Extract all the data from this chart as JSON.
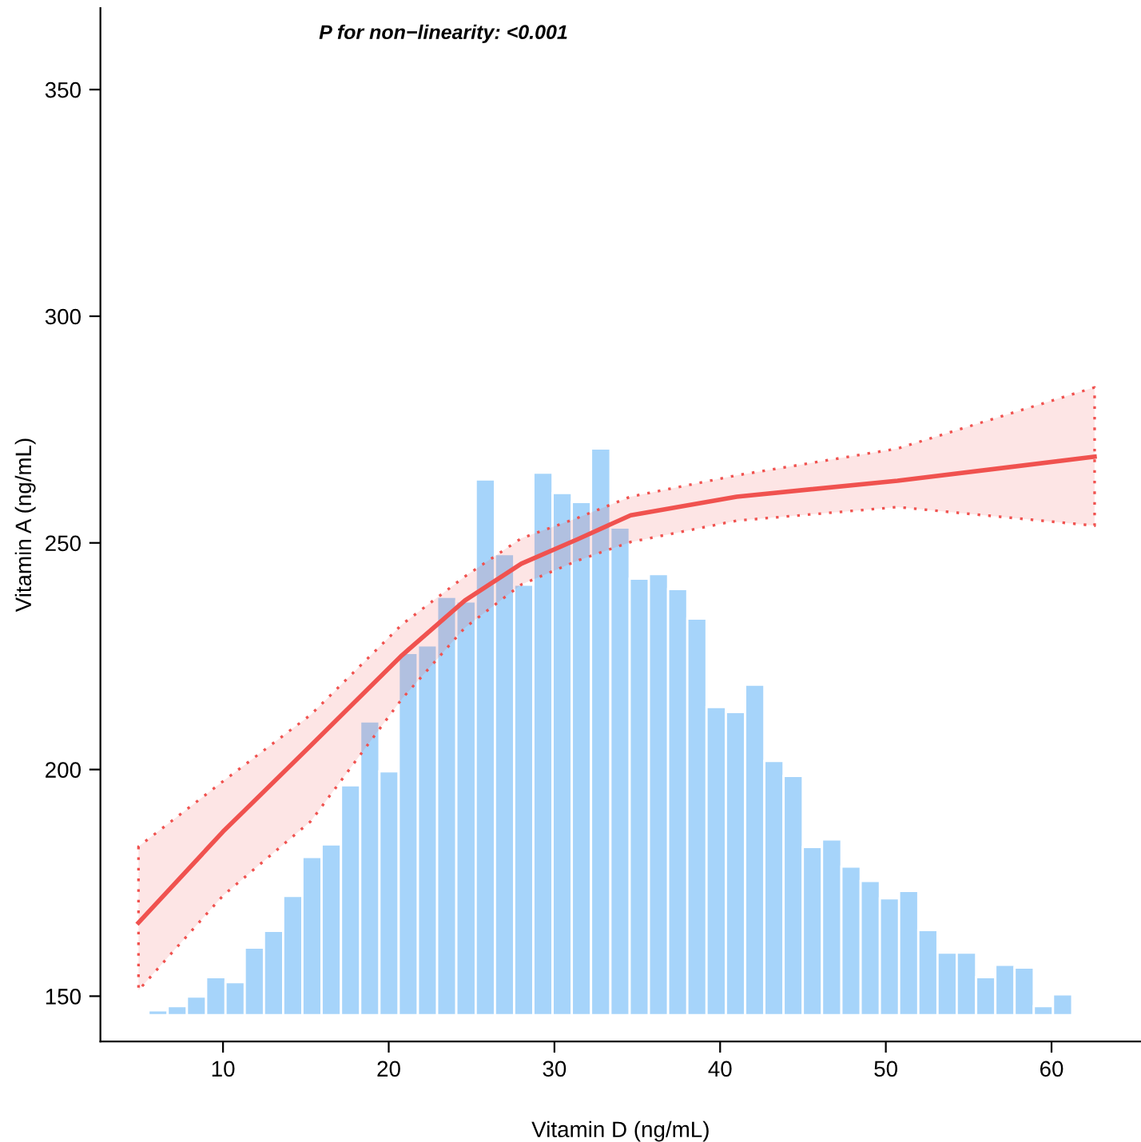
{
  "chart_data": {
    "type": "line",
    "xlabel": "Vitamin D (ng/mL)",
    "ylabel": "Vitamin A (ng/mL)",
    "annotations": [
      "P for non−linearity: <0.001"
    ],
    "xlim": [
      2.6,
      65.4
    ],
    "xticks": [
      10,
      20,
      30,
      40,
      50,
      60
    ],
    "ylim": [
      140,
      368
    ],
    "yticks": [
      150,
      200,
      250,
      300,
      350
    ],
    "series": [
      {
        "type": "histogram",
        "color": "#a6d4fa",
        "bins": [
          5.5,
          6.66,
          7.82,
          8.98,
          10.15,
          11.31,
          12.47,
          13.63,
          14.79,
          15.95,
          17.12,
          18.28,
          19.44,
          20.6,
          21.76,
          22.92,
          24.08,
          25.25,
          26.41,
          27.57,
          28.73,
          29.89,
          31.05,
          32.21,
          33.38,
          34.54,
          35.7,
          36.86,
          38.02,
          39.18,
          40.35,
          41.51,
          42.67,
          43.83,
          44.99,
          46.15,
          47.32,
          48.48,
          49.64,
          50.8,
          51.96,
          53.12,
          54.28,
          55.45,
          56.61,
          57.77,
          58.93,
          60.09,
          61.25
        ],
        "values": [
          1.1,
          2.0,
          4.1,
          8.4,
          7.3,
          14.9,
          18.6,
          26.3,
          34.9,
          37.7,
          50.7,
          64.8,
          53.8,
          79.9,
          81.6,
          92.3,
          91.3,
          118.2,
          101.7,
          95.0,
          119.7,
          115.2,
          113.2,
          125.0,
          107.6,
          96.3,
          97.3,
          94.0,
          87.5,
          68.0,
          66.9,
          72.9,
          56.1,
          52.8,
          37.1,
          38.8,
          32.8,
          29.6,
          25.8,
          27.4,
          18.8,
          13.8,
          13.8,
          8.4,
          11.1,
          10.5,
          2.0,
          4.6
        ],
        "base": [
          145.8,
          145.8,
          145.8,
          145.8,
          145.8,
          145.8,
          145.8,
          145.8,
          145.8,
          145.8,
          145.8,
          145.8,
          145.8,
          145.8,
          145.8,
          145.8,
          145.8,
          145.8,
          145.8,
          145.8,
          145.8,
          145.8,
          145.8,
          145.8,
          145.8,
          145.8,
          145.8,
          145.8,
          145.8,
          145.8,
          145.8,
          145.8,
          145.8,
          145.8,
          145.8,
          145.8,
          145.8,
          145.8,
          145.8,
          145.8,
          145.8,
          145.8,
          145.8,
          145.8,
          145.8,
          145.8,
          145.8,
          145.8
        ]
      },
      {
        "color": "#f0524f",
        "x": [
          4.9,
          10,
          15.3,
          20.8,
          24.6,
          28,
          31.4,
          34.6,
          41,
          50.7,
          62.6
        ],
        "values": [
          166.2,
          186.3,
          205.3,
          225.2,
          237.3,
          245.4,
          250.8,
          256.1,
          260.2,
          263.7,
          269.0
        ],
        "lower": [
          151.3,
          172.2,
          188.6,
          215.6,
          231.3,
          240.8,
          246.1,
          250.2,
          254.9,
          257.9,
          253.8
        ],
        "upper": [
          183.0,
          197.4,
          212.1,
          232.0,
          242.6,
          251.0,
          255.5,
          260.2,
          264.9,
          270.8,
          284.3
        ]
      }
    ]
  }
}
